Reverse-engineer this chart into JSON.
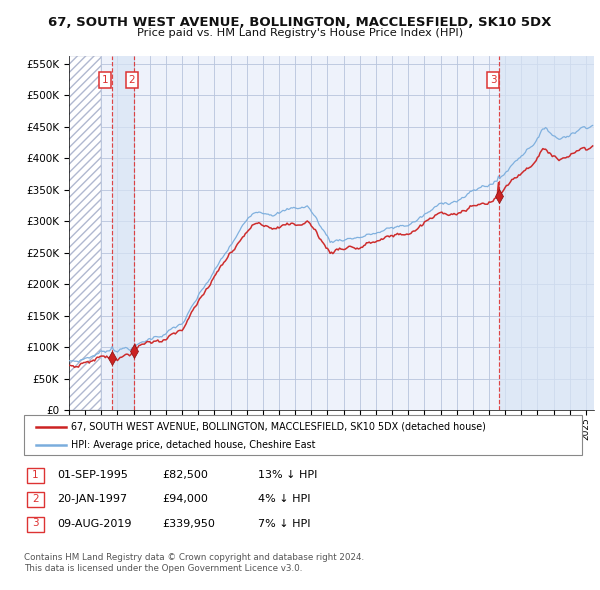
{
  "title": "67, SOUTH WEST AVENUE, BOLLINGTON, MACCLESFIELD, SK10 5DX",
  "subtitle": "Price paid vs. HM Land Registry's House Price Index (HPI)",
  "legend_line1": "67, SOUTH WEST AVENUE, BOLLINGTON, MACCLESFIELD, SK10 5DX (detached house)",
  "legend_line2": "HPI: Average price, detached house, Cheshire East",
  "purchases": [
    {
      "label": "1",
      "date": "01-SEP-1995",
      "price": 82500,
      "pct": "13%",
      "direction": "↓",
      "x_year": 1995.67
    },
    {
      "label": "2",
      "date": "20-JAN-1997",
      "price": 94000,
      "pct": "4%",
      "direction": "↓",
      "x_year": 1997.05
    },
    {
      "label": "3",
      "date": "09-AUG-2019",
      "price": 339950,
      "pct": "7%",
      "direction": "↓",
      "x_year": 2019.6
    }
  ],
  "ylim": [
    0,
    562500
  ],
  "yticks": [
    0,
    50000,
    100000,
    150000,
    200000,
    250000,
    300000,
    350000,
    400000,
    450000,
    500000,
    550000
  ],
  "xlim_start": 1993.0,
  "xlim_end": 2025.5,
  "background_color": "#ffffff",
  "plot_bg_color": "#eef2fb",
  "hatch_color": "#b0b8d0",
  "grid_color": "#b8c4dd",
  "hpi_line_color": "#7aaddd",
  "property_line_color": "#cc2222",
  "marker_color": "#cc2222",
  "vline_color": "#dd3333",
  "shade_color": "#d8e4f4",
  "hatch_region_end": 1995.0,
  "footnote": "Contains HM Land Registry data © Crown copyright and database right 2024.\nThis data is licensed under the Open Government Licence v3.0."
}
